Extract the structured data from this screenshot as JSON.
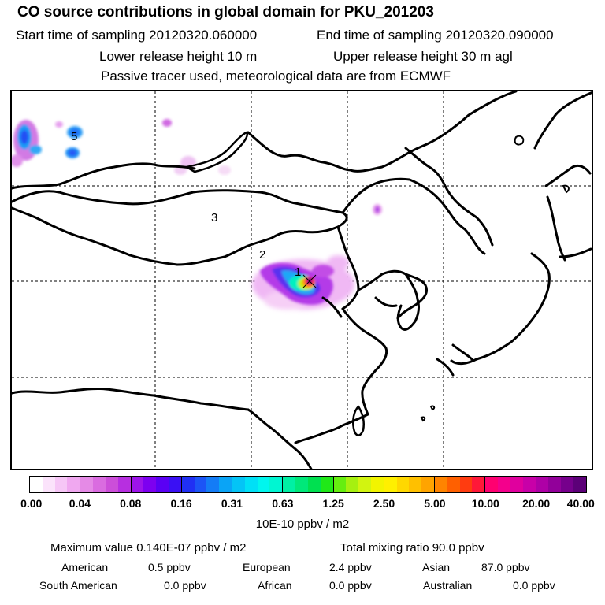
{
  "header": {
    "title": "CO  source contributions in global domain for PKU_201203",
    "start": "Start time of sampling 20120320.060000",
    "end": "End time of sampling 20120320.090000",
    "lower": "Lower release height   10 m",
    "upper": "Upper release height   30 m    agl",
    "tracer": "Passive tracer used, meteorological data are from ECMWF"
  },
  "map": {
    "region_labels": [
      {
        "label": "1"
      },
      {
        "label": "2"
      },
      {
        "label": "3"
      },
      {
        "label": "5"
      }
    ]
  },
  "colorbar": {
    "ticks": [
      "0.00",
      "0.04",
      "0.08",
      "0.16",
      "0.31",
      "0.63",
      "1.25",
      "2.50",
      "5.00",
      "10.00",
      "20.00",
      "40.00"
    ],
    "colors": [
      "#ffffff",
      "#fbe3fb",
      "#f6c6f6",
      "#f0a8f0",
      "#e58ae6",
      "#da6ce0",
      "#cc4ed9",
      "#b72fe0",
      "#9d14ea",
      "#7d00f0",
      "#5a00f4",
      "#3a10f4",
      "#2030f4",
      "#1c54f6",
      "#147cf6",
      "#0aa4f6",
      "#04c4f6",
      "#00e0f6",
      "#00f6ee",
      "#00f6d2",
      "#00f0a4",
      "#00e87a",
      "#00e050",
      "#20e818",
      "#66ee10",
      "#a6f010",
      "#d2f410",
      "#f2f400",
      "#fff000",
      "#ffd800",
      "#ffc000",
      "#ffa400",
      "#ff8400",
      "#ff6000",
      "#ff3c10",
      "#ff1838",
      "#ff0070",
      "#f4008c",
      "#e0009e",
      "#c800a8",
      "#ae00a6",
      "#92009a",
      "#76008c",
      "#5c0078"
    ],
    "units": "10E-10 ppbv / m2"
  },
  "stats": {
    "maximum": "Maximum value  0.140E-07 ppbv / m2",
    "total": "Total mixing ratio       90.0 ppbv",
    "american_label": "American",
    "american_val": "0.5 ppbv",
    "european_label": "European",
    "european_val": "2.4 ppbv",
    "asian_label": "Asian",
    "asian_val": "87.0 ppbv",
    "south_american_label": "South American",
    "south_american_val": "0.0 ppbv",
    "african_label": "African",
    "african_val": "0.0 ppbv",
    "australian_label": "Australian",
    "australian_val": "0.0 ppbv"
  }
}
